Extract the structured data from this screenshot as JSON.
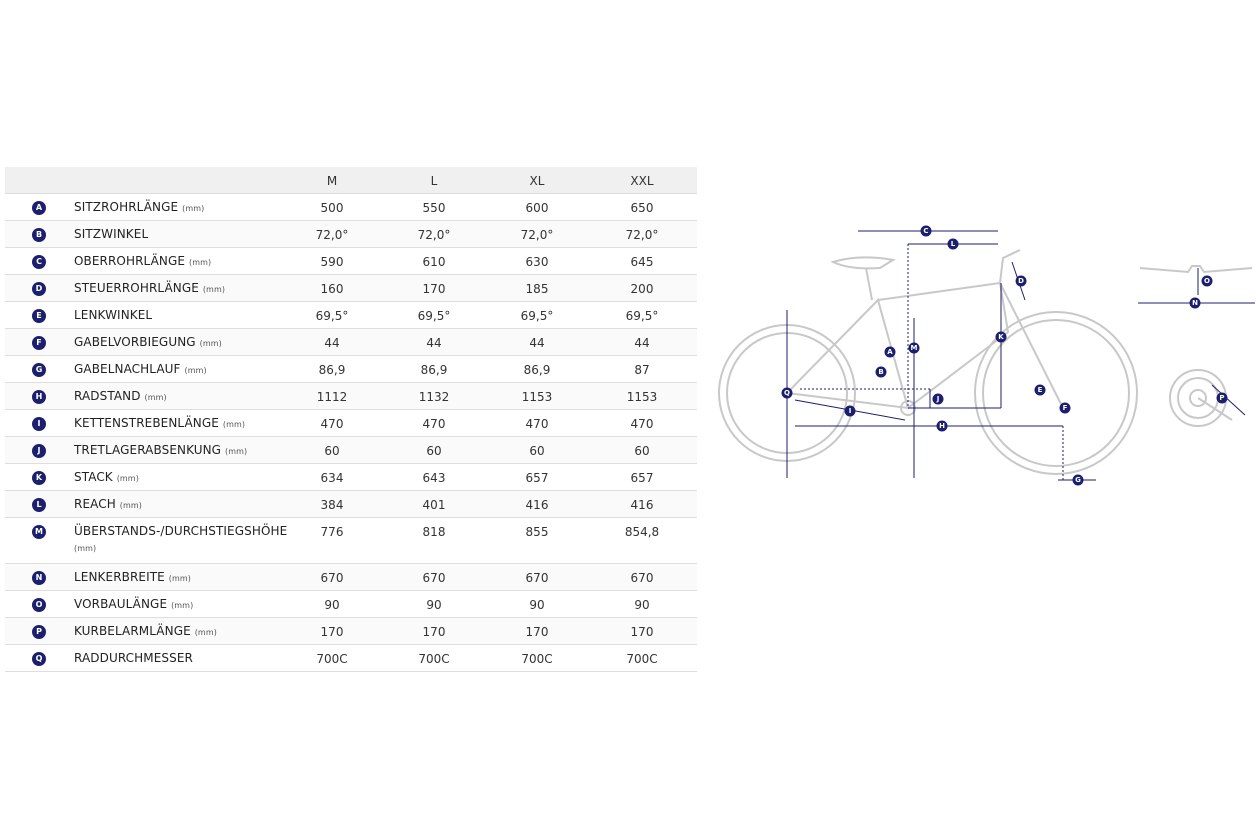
{
  "table": {
    "columns": [
      "M",
      "L",
      "XL",
      "XXL"
    ],
    "rows": [
      {
        "letter": "A",
        "name": "SITZROHRLÄNGE",
        "unit": "(mm)",
        "values": [
          "500",
          "550",
          "600",
          "650"
        ]
      },
      {
        "letter": "B",
        "name": "SITZWINKEL",
        "values": [
          "72,0°",
          "72,0°",
          "72,0°",
          "72,0°"
        ]
      },
      {
        "letter": "C",
        "name": "OBERROHRLÄNGE",
        "unit": "(mm)",
        "values": [
          "590",
          "610",
          "630",
          "645"
        ]
      },
      {
        "letter": "D",
        "name": "STEUERROHRLÄNGE",
        "unit": "(mm)",
        "values": [
          "160",
          "170",
          "185",
          "200"
        ]
      },
      {
        "letter": "E",
        "name": "LENKWINKEL",
        "values": [
          "69,5°",
          "69,5°",
          "69,5°",
          "69,5°"
        ]
      },
      {
        "letter": "F",
        "name": "GABELVORBIEGUNG",
        "unit": "(mm)",
        "values": [
          "44",
          "44",
          "44",
          "44"
        ]
      },
      {
        "letter": "G",
        "name": "GABELNACHLAUF",
        "unit": "(mm)",
        "values": [
          "86,9",
          "86,9",
          "86,9",
          "87"
        ]
      },
      {
        "letter": "H",
        "name": "RADSTAND",
        "unit": "(mm)",
        "values": [
          "1112",
          "1132",
          "1153",
          "1153"
        ]
      },
      {
        "letter": "I",
        "name": "KETTENSTREBENLÄNGE",
        "unit": "(mm)",
        "values": [
          "470",
          "470",
          "470",
          "470"
        ]
      },
      {
        "letter": "J",
        "name": "TRETLAGERABSENKUNG",
        "unit": "(mm)",
        "values": [
          "60",
          "60",
          "60",
          "60"
        ]
      },
      {
        "letter": "K",
        "name": "STACK",
        "unit": "(mm)",
        "values": [
          "634",
          "643",
          "657",
          "657"
        ]
      },
      {
        "letter": "L",
        "name": "REACH",
        "unit": "(mm)",
        "values": [
          "384",
          "401",
          "416",
          "416"
        ]
      },
      {
        "letter": "M",
        "name": "ÜBERSTANDS-/DURCHSTIEGSHÖHE",
        "unit": "(mm)",
        "values": [
          "776",
          "818",
          "855",
          "854,8"
        ]
      },
      {
        "letter": "N",
        "name": "LENKERBREITE",
        "unit": "(mm)",
        "values": [
          "670",
          "670",
          "670",
          "670"
        ]
      },
      {
        "letter": "O",
        "name": "VORBAULÄNGE",
        "unit": "(mm)",
        "values": [
          "90",
          "90",
          "90",
          "90"
        ]
      },
      {
        "letter": "P",
        "name": "KURBELARMLÄNGE",
        "unit": "(mm)",
        "values": [
          "170",
          "170",
          "170",
          "170"
        ]
      },
      {
        "letter": "Q",
        "name": "RADDURCHMESSER",
        "values": [
          "700C",
          "700C",
          "700C",
          "700C"
        ]
      }
    ]
  }
}
